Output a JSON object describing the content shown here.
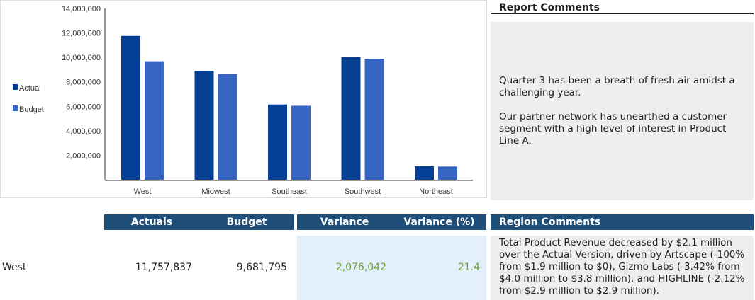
{
  "chart_data": {
    "type": "bar",
    "categories": [
      "West",
      "Midwest",
      "Southeast",
      "Southwest",
      "Northeast"
    ],
    "series": [
      {
        "name": "Actual",
        "color": "#043f94",
        "values": [
          11757837,
          8900000,
          6150000,
          10030000,
          1100000
        ]
      },
      {
        "name": "Budget",
        "color": "#3665c2",
        "values": [
          9681795,
          8650000,
          6050000,
          9880000,
          1080000
        ]
      }
    ],
    "yticks": [
      2000000,
      4000000,
      6000000,
      8000000,
      10000000,
      12000000,
      14000000
    ],
    "ytick_labels": [
      "2,000,000",
      "4,000,000",
      "6,000,000",
      "8,000,000",
      "10,000,000",
      "12,000,000",
      "14,000,000"
    ],
    "ylim": [
      0,
      14000000
    ],
    "legend": "left",
    "grid": false
  },
  "report_comments": {
    "title": "Report Comments",
    "p1": "Quarter 3 has been a breath of fresh air amidst a challenging year.",
    "p2": "Our partner network has unearthed a customer segment with a high level of interest in Product Line A."
  },
  "table": {
    "headers": {
      "actuals": "Actuals",
      "budget": "Budget",
      "variance": "Variance",
      "variance_pct": "Variance (%)",
      "region_comments": "Region Comments"
    },
    "rows": [
      {
        "region": "West",
        "actuals": "11,757,837",
        "budget": "9,681,795",
        "variance": "2,076,042",
        "variance_pct": "21.4",
        "comment": "Total Product Revenue decreased by $2.1 million over the Actual Version, driven by Artscape (-100% from $1.9 million to $0), Gizmo Labs (-3.42% from $4.0 million to $3.8 million), and HIGHLINE (-2.12% from $2.9 million to $2.9 million)."
      }
    ]
  },
  "colors": {
    "header": "#1f4e79",
    "variance_bg": "#e3f0fb",
    "comment_bg": "#eeeeee",
    "positive": "#70a33c"
  }
}
